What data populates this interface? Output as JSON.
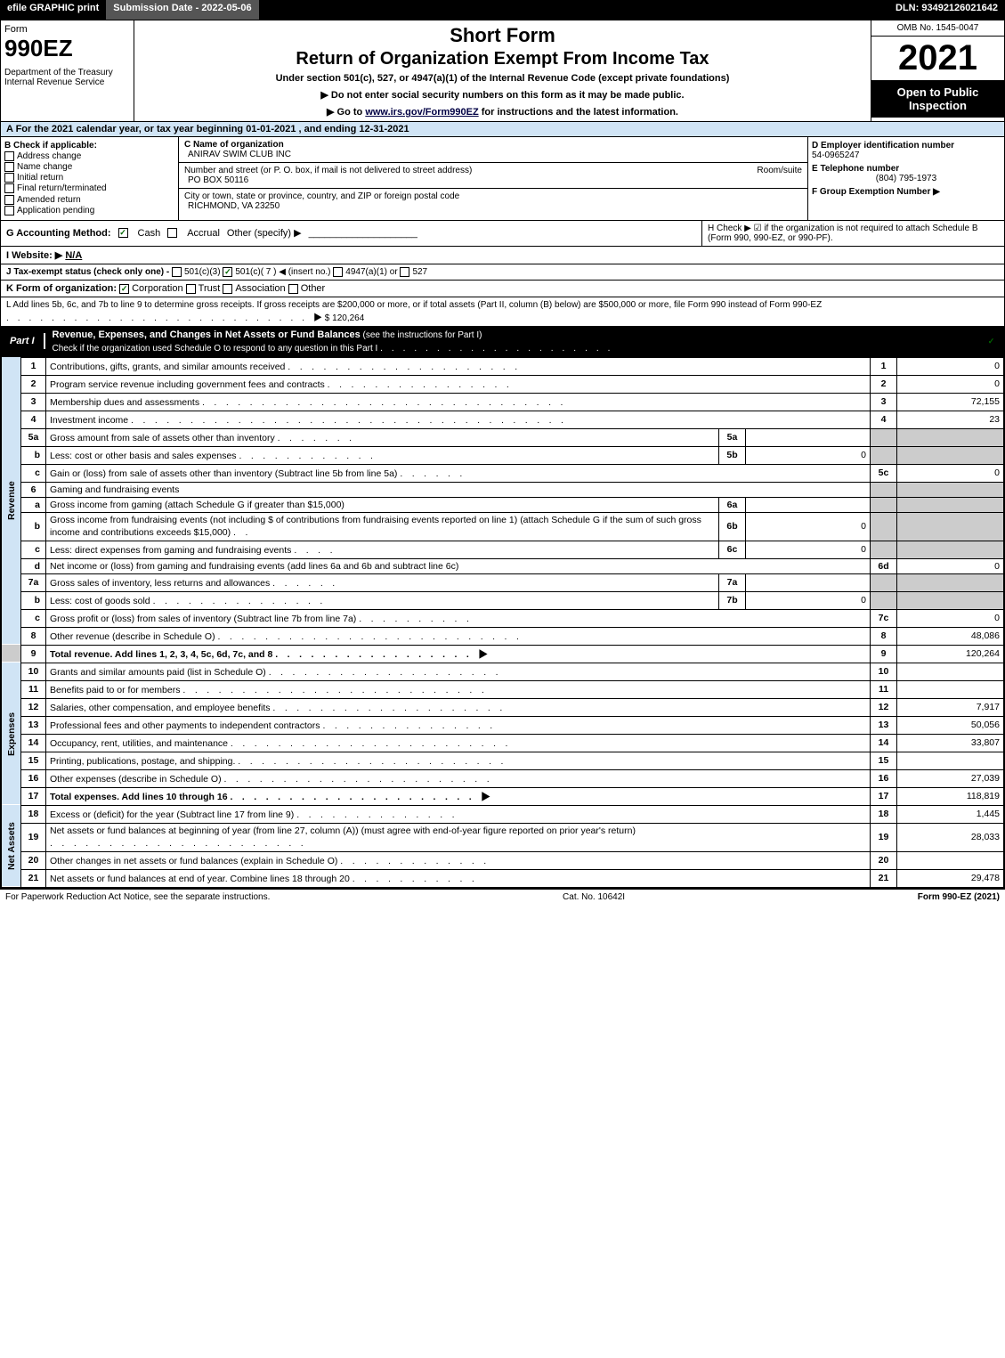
{
  "topbar": {
    "efile": "efile GRAPHIC print",
    "sub_label": "Submission Date - 2022-05-06",
    "dln": "DLN: 93492126021642"
  },
  "header": {
    "form_word": "Form",
    "form_no": "990EZ",
    "dept": "Department of the Treasury\nInternal Revenue Service",
    "title1": "Short Form",
    "title2": "Return of Organization Exempt From Income Tax",
    "subtitle": "Under section 501(c), 527, or 4947(a)(1) of the Internal Revenue Code (except private foundations)",
    "note1": "▶ Do not enter social security numbers on this form as it may be made public.",
    "note2_pre": "▶ Go to ",
    "note2_link": "www.irs.gov/Form990EZ",
    "note2_post": " for instructions and the latest information.",
    "omb": "OMB No. 1545-0047",
    "year": "2021",
    "open": "Open to Public Inspection"
  },
  "lineA": "A  For the 2021 calendar year, or tax year beginning 01-01-2021 , and ending 12-31-2021",
  "B": {
    "hdr": "B  Check if applicable:",
    "opts": [
      "Address change",
      "Name change",
      "Initial return",
      "Final return/terminated",
      "Amended return",
      "Application pending"
    ]
  },
  "C": {
    "name_lbl": "C Name of organization",
    "name_val": "ANIRAV SWIM CLUB INC",
    "addr_lbl": "Number and street (or P. O. box, if mail is not delivered to street address)",
    "addr_val": "PO BOX 50116",
    "room_lbl": "Room/suite",
    "city_lbl": "City or town, state or province, country, and ZIP or foreign postal code",
    "city_val": "RICHMOND, VA  23250"
  },
  "D": {
    "lbl": "D Employer identification number",
    "val": "54-0965247"
  },
  "E": {
    "lbl": "E Telephone number",
    "val": "(804) 795-1973"
  },
  "F": {
    "lbl": "F Group Exemption Number  ▶",
    "val": ""
  },
  "G": {
    "lbl": "G Accounting Method:",
    "cash": "Cash",
    "accrual": "Accrual",
    "other": "Other (specify) ▶"
  },
  "H": {
    "text": "H  Check ▶ ☑ if the organization is not required to attach Schedule B (Form 990, 990-EZ, or 990-PF)."
  },
  "I": {
    "lbl": "I Website: ▶",
    "val": "N/A"
  },
  "J": {
    "lbl": "J Tax-exempt status (check only one) -",
    "o1": "501(c)(3)",
    "o2": "501(c)( 7 ) ◀ (insert no.)",
    "o3": "4947(a)(1) or",
    "o4": "527"
  },
  "K": {
    "lbl": "K Form of organization:",
    "opts": [
      "Corporation",
      "Trust",
      "Association",
      "Other"
    ]
  },
  "L": {
    "text": "L Add lines 5b, 6c, and 7b to line 9 to determine gross receipts. If gross receipts are $200,000 or more, or if total assets (Part II, column (B) below) are $500,000 or more, file Form 990 instead of Form 990-EZ  .　.　.　.　.　.　.　.　.　.　.　.　.　.　.　.　.　.　.　.　.　.　.　.　.　.　.　▶ $ 120,264"
  },
  "partI": {
    "tag": "Part I",
    "title": "Revenue, Expenses, and Changes in Net Assets or Fund Balances",
    "sub": " (see the instructions for Part I)",
    "check_line": "Check if the organization used Schedule O to respond to any question in this Part I  .　.　.　.　.　.　.　.　.　.　.　.　.　.　.　.　.　.　.　.　."
  },
  "vert": {
    "rev": "Revenue",
    "exp": "Expenses",
    "net": "Net Assets"
  },
  "lines": {
    "l1": {
      "no": "1",
      "desc": "Contributions, gifts, grants, and similar amounts received  .　.　.　.　.　.　.　.　.　.　.　.　.　.　.　.　.　.　.　.",
      "rno": "1",
      "val": "0"
    },
    "l2": {
      "no": "2",
      "desc": "Program service revenue including government fees and contracts  .　.　.　.　.　.　.　.　.　.　.　.　.　.　.　.",
      "rno": "2",
      "val": "0"
    },
    "l3": {
      "no": "3",
      "desc": "Membership dues and assessments  .　.　.　.　.　.　.　.　.　.　.　.　.　.　.　.　.　.　.　.　.　.　.　.　.　.　.　.　.　.　.",
      "rno": "3",
      "val": "72,155"
    },
    "l4": {
      "no": "4",
      "desc": "Investment income  .　.　.　.　.　.　.　.　.　.　.　.　.　.　.　.　.　.　.　.　.　.　.　.　.　.　.　.　.　.　.　.　.　.　.　.　.",
      "rno": "4",
      "val": "23"
    },
    "l5a": {
      "no": "5a",
      "desc": "Gross amount from sale of assets other than inventory  .　.　.　.　.　.　.",
      "subno": "5a",
      "subval": ""
    },
    "l5b": {
      "no": "b",
      "desc": "Less: cost or other basis and sales expenses  .　.　.　.　.　.　.　.　.　.　.　.",
      "subno": "5b",
      "subval": "0"
    },
    "l5c": {
      "no": "c",
      "desc": "Gain or (loss) from sale of assets other than inventory (Subtract line 5b from line 5a)  .　.　.　.　.　.",
      "rno": "5c",
      "val": "0"
    },
    "l6": {
      "no": "6",
      "desc": "Gaming and fundraising events"
    },
    "l6a": {
      "no": "a",
      "desc": "Gross income from gaming (attach Schedule G if greater than $15,000)",
      "subno": "6a",
      "subval": ""
    },
    "l6b": {
      "no": "b",
      "desc": "Gross income from fundraising events (not including $                    of contributions from fundraising events reported on line 1) (attach Schedule G if the sum of such gross income and contributions exceeds $15,000)    .　.",
      "subno": "6b",
      "subval": "0"
    },
    "l6c": {
      "no": "c",
      "desc": "Less: direct expenses from gaming and fundraising events   .　.　.　.",
      "subno": "6c",
      "subval": "0"
    },
    "l6d": {
      "no": "d",
      "desc": "Net income or (loss) from gaming and fundraising events (add lines 6a and 6b and subtract line 6c)",
      "rno": "6d",
      "val": "0"
    },
    "l7a": {
      "no": "7a",
      "desc": "Gross sales of inventory, less returns and allowances  .　.　.　.　.　.",
      "subno": "7a",
      "subval": ""
    },
    "l7b": {
      "no": "b",
      "desc": "Less: cost of goods sold        .　.　.　.　.　.　.　.　.　.　.　.　.　.　.",
      "subno": "7b",
      "subval": "0"
    },
    "l7c": {
      "no": "c",
      "desc": "Gross profit or (loss) from sales of inventory (Subtract line 7b from line 7a)  .　.　.　.　.　.　.　.　.　.",
      "rno": "7c",
      "val": "0"
    },
    "l8": {
      "no": "8",
      "desc": "Other revenue (describe in Schedule O)  .　.　.　.　.　.　.　.　.　.　.　.　.　.　.　.　.　.　.　.　.　.　.　.　.　.",
      "rno": "8",
      "val": "48,086"
    },
    "l9": {
      "no": "9",
      "desc": "Total revenue. Add lines 1, 2, 3, 4, 5c, 6d, 7c, and 8   .　.　.　.　.　.　.　.　.　.　.　.　.　.　.　.　.　▶",
      "rno": "9",
      "val": "120,264"
    },
    "l10": {
      "no": "10",
      "desc": "Grants and similar amounts paid (list in Schedule O)  .　.　.　.　.　.　.　.　.　.　.　.　.　.　.　.　.　.　.　.",
      "rno": "10",
      "val": ""
    },
    "l11": {
      "no": "11",
      "desc": "Benefits paid to or for members       .　.　.　.　.　.　.　.　.　.　.　.　.　.　.　.　.　.　.　.　.　.　.　.　.　.",
      "rno": "11",
      "val": ""
    },
    "l12": {
      "no": "12",
      "desc": "Salaries, other compensation, and employee benefits  .　.　.　.　.　.　.　.　.　.　.　.　.　.　.　.　.　.　.　.",
      "rno": "12",
      "val": "7,917"
    },
    "l13": {
      "no": "13",
      "desc": "Professional fees and other payments to independent contractors  .　.　.　.　.　.　.　.　.　.　.　.　.　.　.",
      "rno": "13",
      "val": "50,056"
    },
    "l14": {
      "no": "14",
      "desc": "Occupancy, rent, utilities, and maintenance  .　.　.　.　.　.　.　.　.　.　.　.　.　.　.　.　.　.　.　.　.　.　.　.",
      "rno": "14",
      "val": "33,807"
    },
    "l15": {
      "no": "15",
      "desc": "Printing, publications, postage, and shipping.  .　.　.　.　.　.　.　.　.　.　.　.　.　.　.　.　.　.　.　.　.　.　.",
      "rno": "15",
      "val": ""
    },
    "l16": {
      "no": "16",
      "desc": "Other expenses (describe in Schedule O)      .　.　.　.　.　.　.　.　.　.　.　.　.　.　.　.　.　.　.　.　.　.　.",
      "rno": "16",
      "val": "27,039"
    },
    "l17": {
      "no": "17",
      "desc": "Total expenses. Add lines 10 through 16     .　.　.　.　.　.　.　.　.　.　.　.　.　.　.　.　.　.　.　.　.　▶",
      "rno": "17",
      "val": "118,819"
    },
    "l18": {
      "no": "18",
      "desc": "Excess or (deficit) for the year (Subtract line 17 from line 9)        .　.　.　.　.　.　.　.　.　.　.　.　.　.",
      "rno": "18",
      "val": "1,445"
    },
    "l19": {
      "no": "19",
      "desc": "Net assets or fund balances at beginning of year (from line 27, column (A)) (must agree with end-of-year figure reported on prior year's return)  .　.　.　.　.　.　.　.　.　.　.　.　.　.　.　.　.　.　.　.　.　.",
      "rno": "19",
      "val": "28,033"
    },
    "l20": {
      "no": "20",
      "desc": "Other changes in net assets or fund balances (explain in Schedule O)  .　.　.　.　.　.　.　.　.　.　.　.　.",
      "rno": "20",
      "val": ""
    },
    "l21": {
      "no": "21",
      "desc": "Net assets or fund balances at end of year. Combine lines 18 through 20  .　.　.　.　.　.　.　.　.　.　.",
      "rno": "21",
      "val": "29,478"
    }
  },
  "footer": {
    "left": "For Paperwork Reduction Act Notice, see the separate instructions.",
    "mid": "Cat. No. 10642I",
    "right": "Form 990-EZ (2021)"
  },
  "colors": {
    "header_bg": "#000000",
    "header_fg": "#ffffff",
    "accent_bg": "#d0e4f5",
    "shade": "#cccccc"
  }
}
